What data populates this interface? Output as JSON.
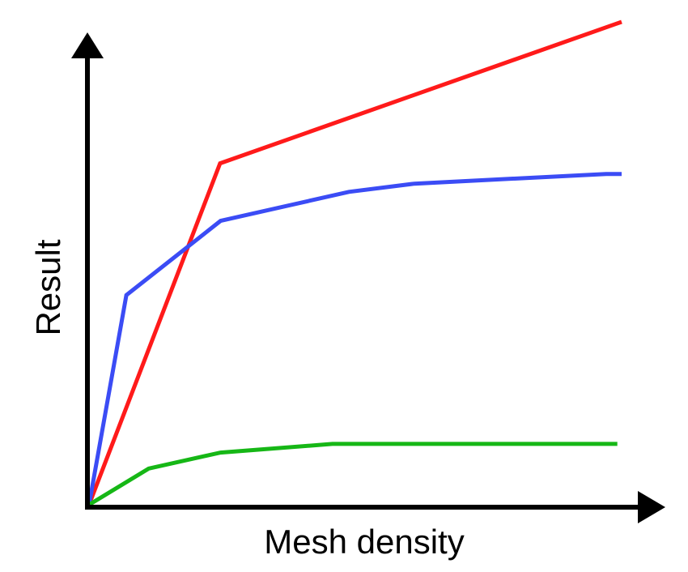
{
  "chart_data": {
    "type": "line",
    "title": "",
    "xlabel": "Mesh density",
    "ylabel": "Result",
    "grid": false,
    "legend": "none",
    "xlim": [
      0,
      100
    ],
    "ylim": [
      0,
      100
    ],
    "series": [
      {
        "color": "#ff1a1a",
        "x": [
          0,
          24.6,
          100
        ],
        "y": [
          0,
          70.7,
          100
        ]
      },
      {
        "color": "#3b4cf5",
        "x": [
          0,
          7.0,
          24.7,
          48.8,
          61.1,
          97.1,
          100
        ],
        "y": [
          0,
          43.4,
          58.8,
          64.8,
          66.5,
          68.5,
          68.5
        ]
      },
      {
        "color": "#16b716",
        "x": [
          0,
          11.2,
          24.7,
          45.7,
          99.2
        ],
        "y": [
          0,
          7.5,
          10.8,
          12.6,
          12.6
        ]
      }
    ]
  }
}
